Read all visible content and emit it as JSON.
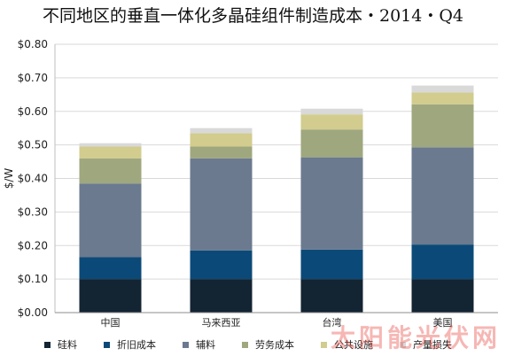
{
  "title": "不同地区的垂直一体化多晶硅组件制造成本・2014・Q4",
  "watermark": "太阳能光伏网",
  "chart_data": {
    "type": "bar",
    "stacked": true,
    "categories": [
      "中国",
      "马来西亚",
      "台湾",
      "美国"
    ],
    "ylabel": "$/W",
    "ylim": [
      0,
      0.8
    ],
    "yticks": [
      0,
      0.1,
      0.2,
      0.3,
      0.4,
      0.5,
      0.6,
      0.7,
      0.8
    ],
    "ytick_labels": [
      "$0.00",
      "$0.10",
      "$0.20",
      "$0.30",
      "$0.40",
      "$0.50",
      "$0.60",
      "$0.70",
      "$0.80"
    ],
    "grid": true,
    "legend_position": "bottom",
    "series": [
      {
        "name": "硅料",
        "color": "#132433",
        "values": [
          0.1,
          0.1,
          0.1,
          0.1
        ]
      },
      {
        "name": "折旧成本",
        "color": "#0b4a78",
        "values": [
          0.065,
          0.085,
          0.088,
          0.103
        ]
      },
      {
        "name": "辅料",
        "color": "#6b7a8f",
        "values": [
          0.22,
          0.275,
          0.275,
          0.29
        ]
      },
      {
        "name": "劳务成本",
        "color": "#9fa77e",
        "values": [
          0.075,
          0.035,
          0.083,
          0.128
        ]
      },
      {
        "name": "公共设施",
        "color": "#d2cc8e",
        "values": [
          0.035,
          0.04,
          0.045,
          0.035
        ]
      },
      {
        "name": "产量损失",
        "color": "#d9d9d9",
        "values": [
          0.01,
          0.015,
          0.017,
          0.021
        ]
      }
    ]
  }
}
